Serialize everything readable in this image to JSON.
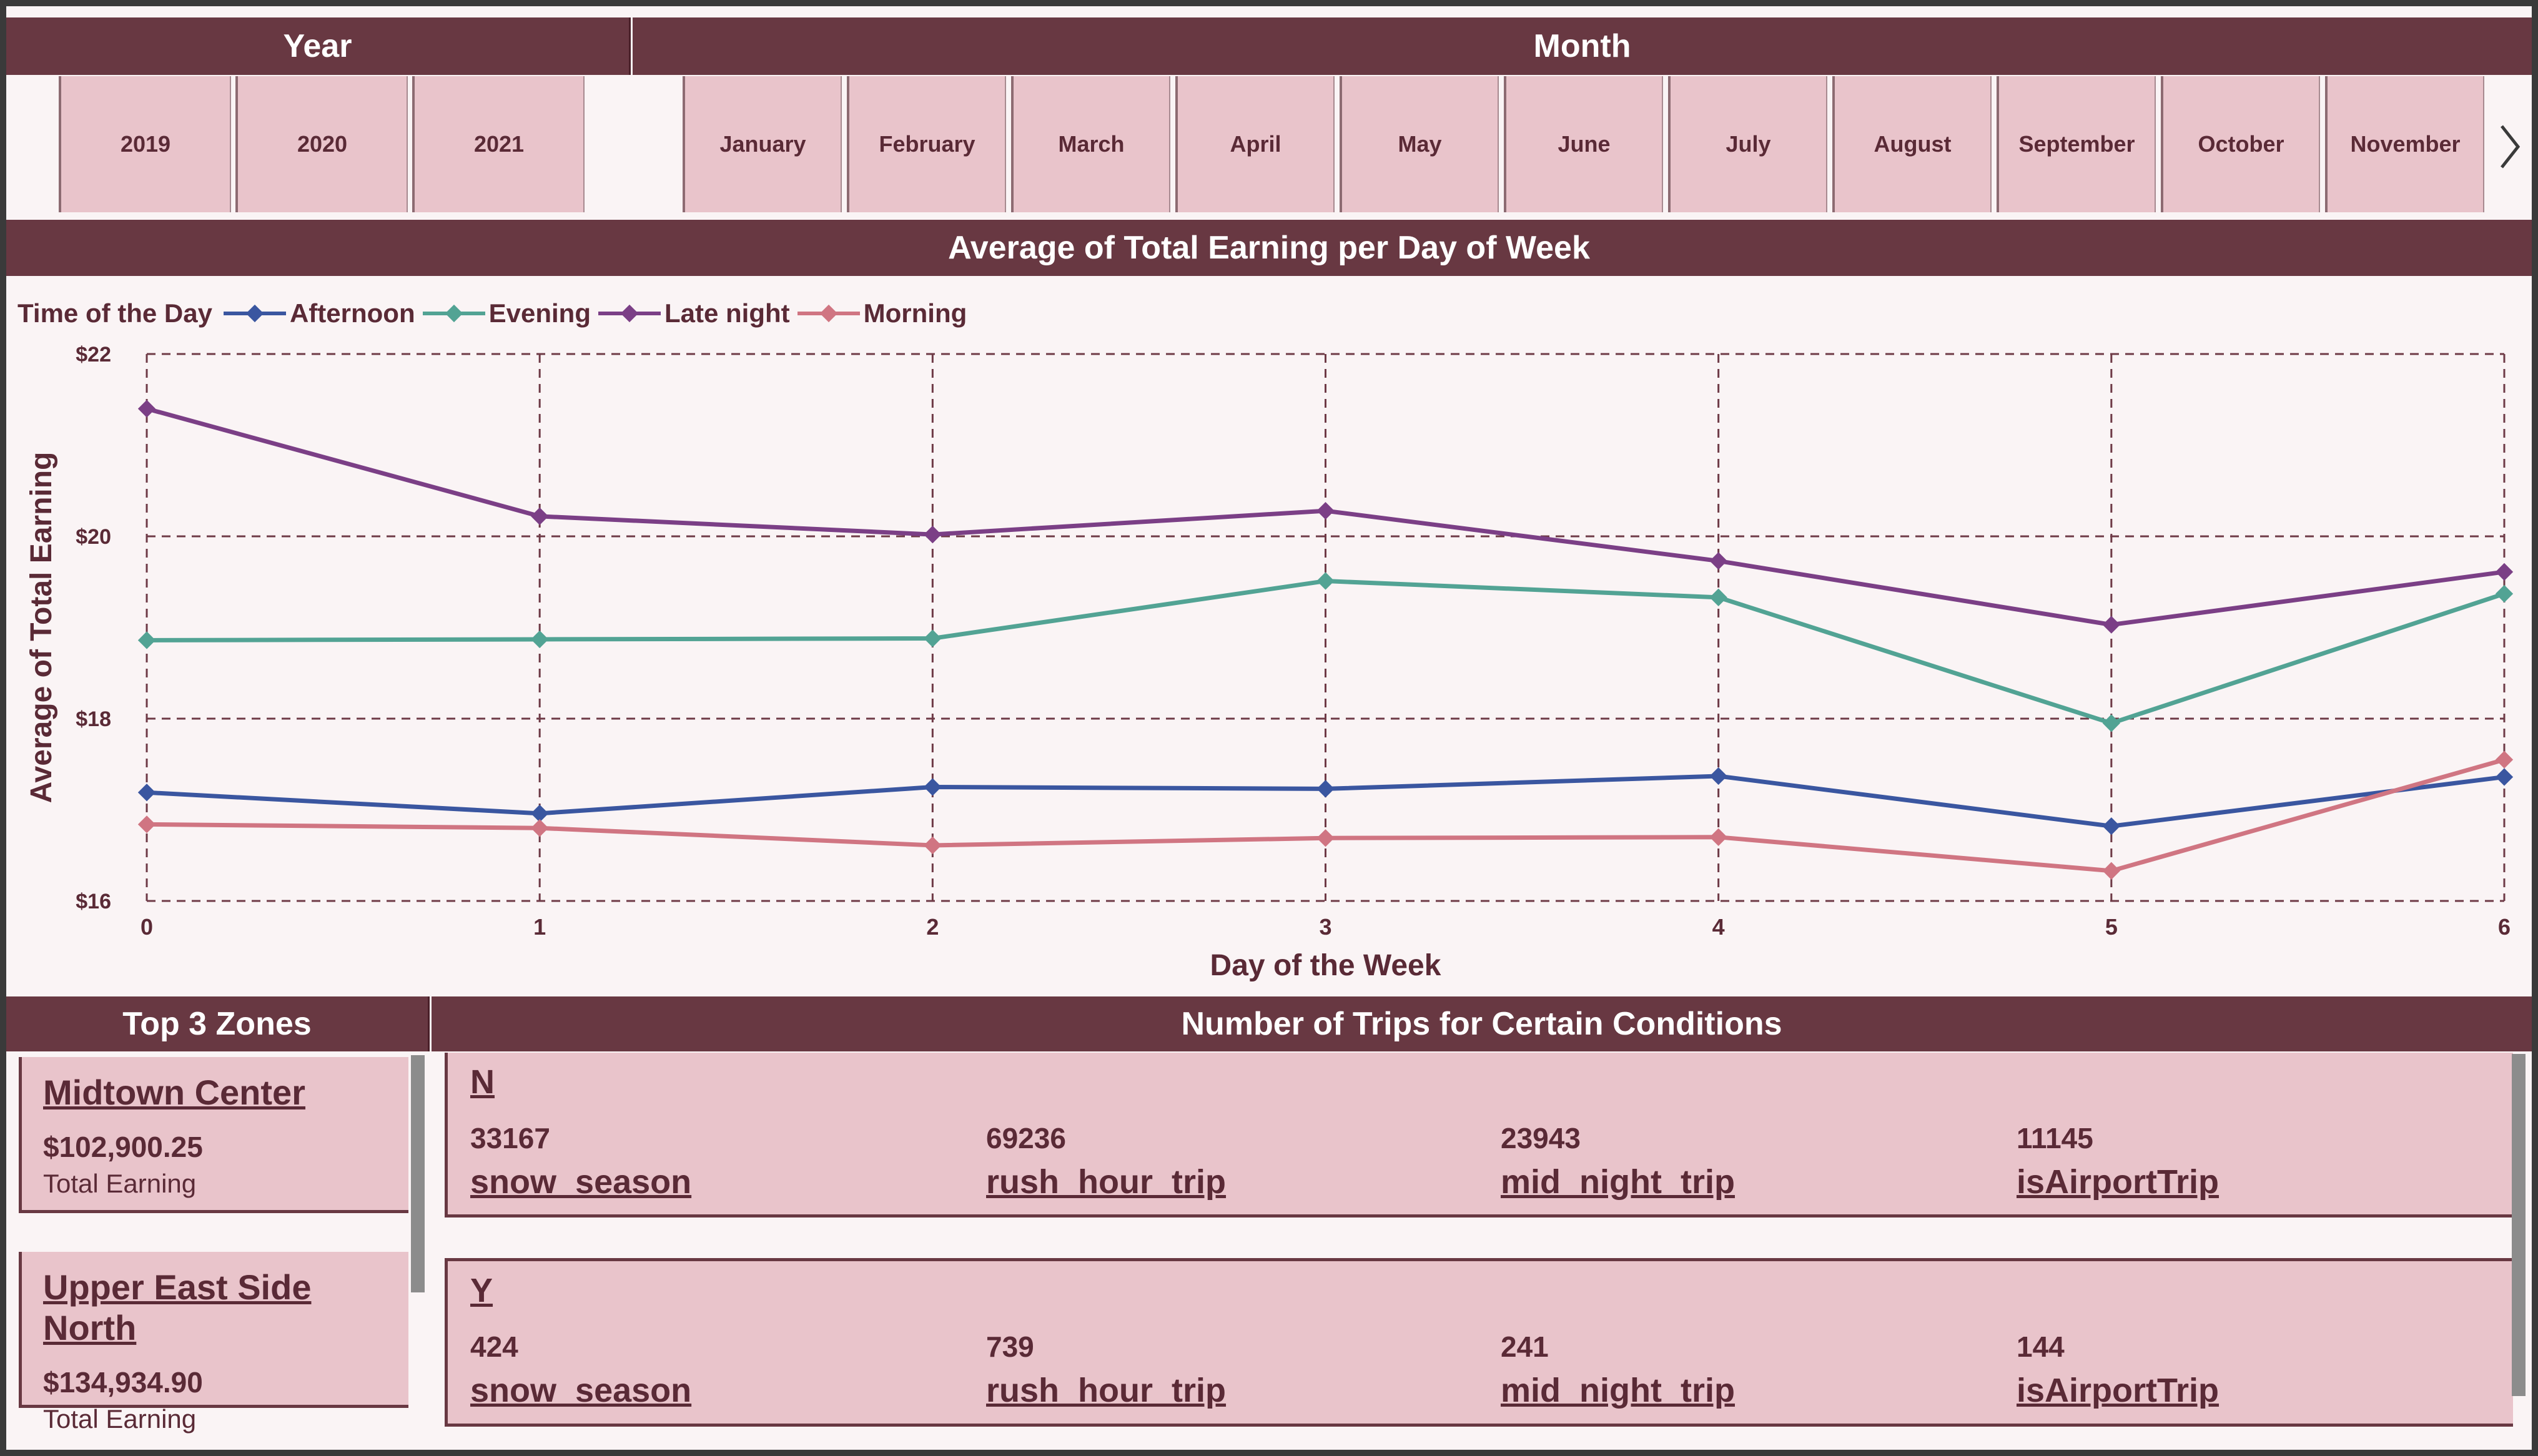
{
  "filters": {
    "year": {
      "title": "Year",
      "options": [
        "2019",
        "2020",
        "2021"
      ]
    },
    "month": {
      "title": "Month",
      "options": [
        "January",
        "February",
        "March",
        "April",
        "May",
        "June",
        "July",
        "August",
        "September",
        "October",
        "November"
      ],
      "next_icon": "chevron-right-icon"
    }
  },
  "chart": {
    "title": "Average of Total Earning per Day of Week",
    "legend_title": "Time of the Day",
    "xlabel": "Day of the Week",
    "ylabel": "Average of Total Earning"
  },
  "chart_data": {
    "type": "line",
    "title": "Average of Total Earning per Day of Week",
    "xlabel": "Day of the Week",
    "ylabel": "Average of Total Earning",
    "x": [
      0,
      1,
      2,
      3,
      4,
      5,
      6
    ],
    "ylim": [
      16,
      22
    ],
    "yticks": [
      "$16",
      "$18",
      "$20",
      "$22"
    ],
    "xticks": [
      "0",
      "1",
      "2",
      "3",
      "4",
      "5",
      "6"
    ],
    "grid": true,
    "legend_position": "top-left",
    "series": [
      {
        "name": "Afternoon",
        "color": "#3a56a0",
        "values": [
          17.19,
          16.96,
          17.25,
          17.23,
          17.37,
          16.82,
          17.36
        ]
      },
      {
        "name": "Evening",
        "color": "#52a394",
        "values": [
          18.86,
          18.87,
          18.88,
          19.51,
          19.33,
          17.95,
          19.37
        ]
      },
      {
        "name": "Late night",
        "color": "#7b3f86",
        "values": [
          21.4,
          20.22,
          20.02,
          20.28,
          19.73,
          19.03,
          19.61
        ]
      },
      {
        "name": "Morning",
        "color": "#d07582",
        "values": [
          16.84,
          16.8,
          16.61,
          16.69,
          16.7,
          16.33,
          17.55
        ]
      }
    ]
  },
  "zones": {
    "title": "Top 3 Zones",
    "items": [
      {
        "name": "Midtown Center",
        "value": "$102,900.25",
        "label": "Total Earning"
      },
      {
        "name": "Upper East Side North",
        "value": "$134,934.90",
        "label": "Total Earning"
      }
    ]
  },
  "conditions": {
    "title": "Number of Trips for Certain Conditions",
    "rows": [
      {
        "flag": "N",
        "metrics": [
          {
            "value": "33167",
            "label": "snow_season"
          },
          {
            "value": "69236",
            "label": "rush_hour_trip"
          },
          {
            "value": "23943",
            "label": "mid_night_trip"
          },
          {
            "value": "11145",
            "label": "isAirportTrip"
          }
        ]
      },
      {
        "flag": "Y",
        "metrics": [
          {
            "value": "424",
            "label": "snow_season"
          },
          {
            "value": "739",
            "label": "rush_hour_trip"
          },
          {
            "value": "241",
            "label": "mid_night_trip"
          },
          {
            "value": "144",
            "label": "isAirportTrip"
          }
        ]
      }
    ]
  }
}
